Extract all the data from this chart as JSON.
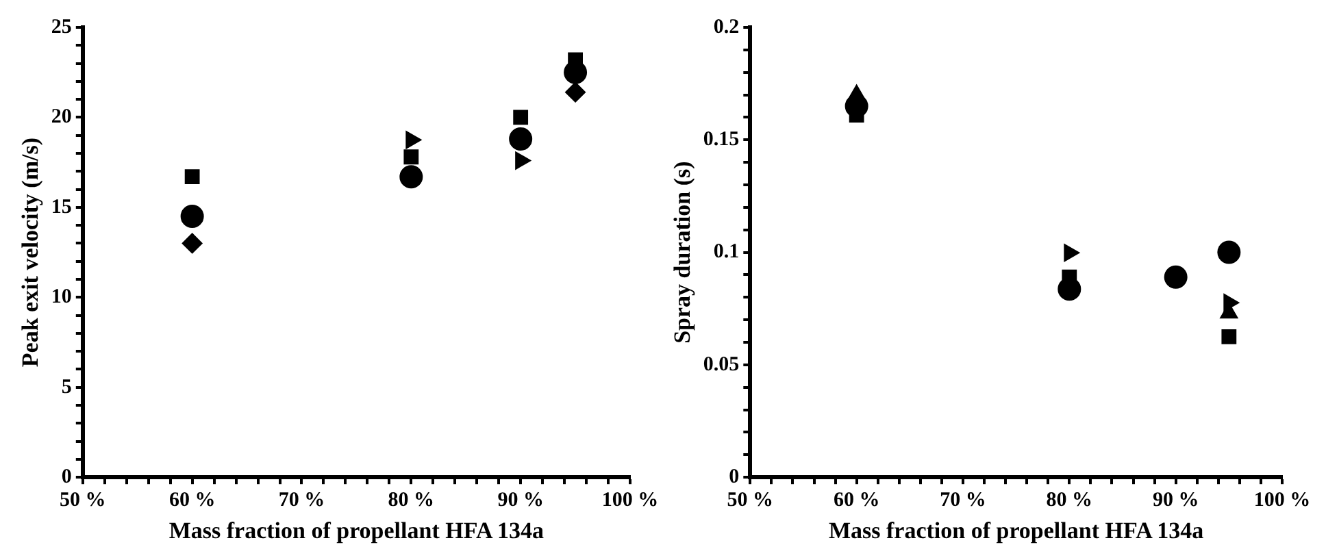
{
  "chart_data": [
    {
      "type": "scatter",
      "xlabel": "Mass fraction of propellant HFA 134a",
      "ylabel": "Peak exit velocity (m/s)",
      "x": [
        60,
        80,
        90,
        95
      ],
      "xlim": [
        50,
        100
      ],
      "ylim": [
        0,
        25
      ],
      "grid": false,
      "xticks": [
        {
          "value": 50,
          "label": "50 %"
        },
        {
          "value": 52,
          "label": null
        },
        {
          "value": 54,
          "label": null
        },
        {
          "value": 56,
          "label": null
        },
        {
          "value": 58,
          "label": null
        },
        {
          "value": 60,
          "label": "60 %"
        },
        {
          "value": 62,
          "label": null
        },
        {
          "value": 64,
          "label": null
        },
        {
          "value": 66,
          "label": null
        },
        {
          "value": 68,
          "label": null
        },
        {
          "value": 70,
          "label": "70 %"
        },
        {
          "value": 72,
          "label": null
        },
        {
          "value": 74,
          "label": null
        },
        {
          "value": 76,
          "label": null
        },
        {
          "value": 78,
          "label": null
        },
        {
          "value": 80,
          "label": "80 %"
        },
        {
          "value": 82,
          "label": null
        },
        {
          "value": 84,
          "label": null
        },
        {
          "value": 86,
          "label": null
        },
        {
          "value": 88,
          "label": null
        },
        {
          "value": 90,
          "label": "90 %"
        },
        {
          "value": 92,
          "label": null
        },
        {
          "value": 94,
          "label": null
        },
        {
          "value": 96,
          "label": null
        },
        {
          "value": 98,
          "label": null
        },
        {
          "value": 100,
          "label": "100 %"
        }
      ],
      "yticks": [
        0,
        {
          "value": 1,
          "label": null
        },
        {
          "value": 2,
          "label": null
        },
        {
          "value": 3,
          "label": null
        },
        {
          "value": 4,
          "label": null
        },
        5,
        {
          "value": 6,
          "label": null
        },
        {
          "value": 7,
          "label": null
        },
        {
          "value": 8,
          "label": null
        },
        {
          "value": 9,
          "label": null
        },
        10,
        {
          "value": 11,
          "label": null
        },
        {
          "value": 12,
          "label": null
        },
        {
          "value": 13,
          "label": null
        },
        {
          "value": 14,
          "label": null
        },
        15,
        {
          "value": 16,
          "label": null
        },
        {
          "value": 17,
          "label": null
        },
        {
          "value": 18,
          "label": null
        },
        {
          "value": 19,
          "label": null
        },
        20,
        {
          "value": 21,
          "label": null
        },
        {
          "value": 22,
          "label": null
        },
        {
          "value": 23,
          "label": null
        },
        {
          "value": 24,
          "label": null
        },
        25
      ],
      "series": [
        {
          "color": "#000000",
          "marker": "square",
          "values": [
            16.7,
            17.8,
            20.0,
            23.2
          ]
        },
        {
          "color": "#000000",
          "marker": "triangle-right",
          "values": [
            null,
            18.75,
            17.6,
            null
          ]
        },
        {
          "color": "#000000",
          "marker": "diamond",
          "values": [
            13.0,
            null,
            null,
            21.4
          ]
        },
        {
          "color": "#000000",
          "marker": "circle",
          "values": [
            14.5,
            16.7,
            18.8,
            22.5
          ]
        }
      ]
    },
    {
      "type": "scatter",
      "xlabel": "Mass fraction of propellant HFA 134a",
      "ylabel": "Spray duration (s)",
      "x": [
        60,
        80,
        90,
        95
      ],
      "xlim": [
        50,
        100
      ],
      "ylim": [
        0,
        0.2
      ],
      "grid": false,
      "xticks": [
        {
          "value": 50,
          "label": "50 %"
        },
        {
          "value": 52,
          "label": null
        },
        {
          "value": 54,
          "label": null
        },
        {
          "value": 56,
          "label": null
        },
        {
          "value": 58,
          "label": null
        },
        {
          "value": 60,
          "label": "60 %"
        },
        {
          "value": 62,
          "label": null
        },
        {
          "value": 64,
          "label": null
        },
        {
          "value": 66,
          "label": null
        },
        {
          "value": 68,
          "label": null
        },
        {
          "value": 70,
          "label": "70 %"
        },
        {
          "value": 72,
          "label": null
        },
        {
          "value": 74,
          "label": null
        },
        {
          "value": 76,
          "label": null
        },
        {
          "value": 78,
          "label": null
        },
        {
          "value": 80,
          "label": "80 %"
        },
        {
          "value": 82,
          "label": null
        },
        {
          "value": 84,
          "label": null
        },
        {
          "value": 86,
          "label": null
        },
        {
          "value": 88,
          "label": null
        },
        {
          "value": 90,
          "label": "90 %"
        },
        {
          "value": 92,
          "label": null
        },
        {
          "value": 94,
          "label": null
        },
        {
          "value": 96,
          "label": null
        },
        {
          "value": 98,
          "label": null
        },
        {
          "value": 100,
          "label": "100 %"
        }
      ],
      "yticks": [
        0,
        {
          "value": 0.01,
          "label": null
        },
        {
          "value": 0.02,
          "label": null
        },
        {
          "value": 0.03,
          "label": null
        },
        {
          "value": 0.04,
          "label": null
        },
        0.05,
        {
          "value": 0.06,
          "label": null
        },
        {
          "value": 0.07,
          "label": null
        },
        {
          "value": 0.08,
          "label": null
        },
        {
          "value": 0.09,
          "label": null
        },
        0.1,
        {
          "value": 0.11,
          "label": null
        },
        {
          "value": 0.12,
          "label": null
        },
        {
          "value": 0.13,
          "label": null
        },
        {
          "value": 0.14,
          "label": null
        },
        0.15,
        {
          "value": 0.16,
          "label": null
        },
        {
          "value": 0.17,
          "label": null
        },
        {
          "value": 0.18,
          "label": null
        },
        {
          "value": 0.19,
          "label": null
        },
        0.2
      ],
      "series": [
        {
          "color": "#000000",
          "marker": "triangle",
          "values": [
            0.17,
            null,
            null,
            0.073
          ]
        },
        {
          "color": "#000000",
          "marker": "square",
          "values": [
            0.161,
            0.089,
            null,
            0.0625
          ]
        },
        {
          "color": "#000000",
          "marker": "triangle-right",
          "values": [
            null,
            0.0998,
            null,
            0.0776
          ]
        },
        {
          "color": "#000000",
          "marker": "circle",
          "values": [
            0.165,
            0.0837,
            0.089,
            0.1
          ]
        }
      ]
    }
  ]
}
